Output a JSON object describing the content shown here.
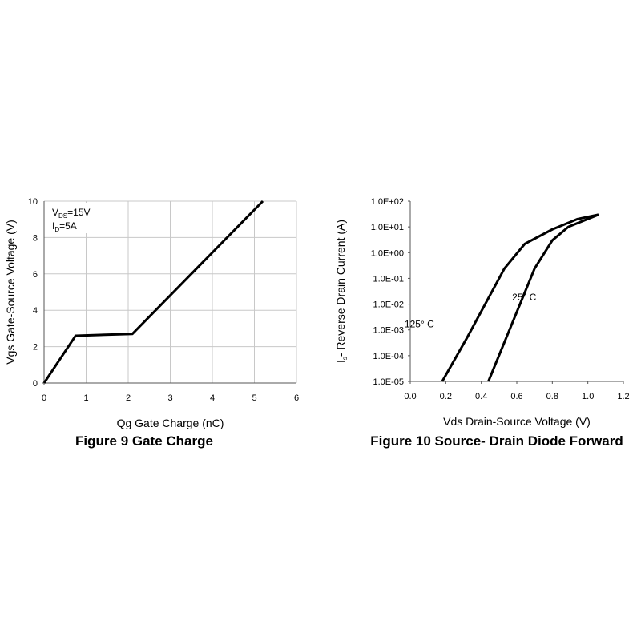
{
  "chart_data": [
    {
      "type": "line",
      "caption": "Figure 9 Gate Charge",
      "x_label": "Qg Gate Charge (nC)",
      "y_label": "Vgs Gate-Source Voltage (V)",
      "annotations": [
        [
          "V",
          "DS",
          "=15V"
        ],
        [
          "I",
          "D",
          "=5A"
        ]
      ],
      "xlim": [
        0,
        6
      ],
      "xticks": [
        0,
        1,
        2,
        3,
        4,
        5,
        6
      ],
      "ylim": [
        0,
        10
      ],
      "yticks": [
        0,
        2,
        4,
        6,
        8,
        10
      ],
      "grid": true,
      "series": [
        {
          "color": "#000000",
          "x": [
            0,
            0.75,
            2.1,
            5.2
          ],
          "values": [
            0,
            2.6,
            2.7,
            10
          ]
        }
      ]
    },
    {
      "type": "line",
      "caption": "Figure 10 Source- Drain Diode Forward",
      "x_label": "Vds Drain-Source Voltage (V)",
      "y_label": [
        "I",
        "s",
        "- Reverse Drain Current (A)"
      ],
      "xlim": [
        0,
        1.2
      ],
      "xticks": [
        {
          "value": 0,
          "label": "0.0"
        },
        0.2,
        0.4,
        0.6,
        0.8,
        {
          "value": 1,
          "label": "1.0"
        },
        1.2
      ],
      "ylim": [
        1e-05,
        100
      ],
      "log_y": true,
      "yticks": [
        {
          "value": 1e-05,
          "label": "1.0E-05"
        },
        {
          "value": 0.0001,
          "label": "1.0E-04"
        },
        {
          "value": 0.001,
          "label": "1.0E-03"
        },
        {
          "value": 0.01,
          "label": "1.0E-02"
        },
        {
          "value": 0.1,
          "label": "1.0E-01"
        },
        {
          "value": 1,
          "label": "1.0E+00"
        },
        {
          "value": 10,
          "label": "1.0E+01"
        },
        {
          "value": 100,
          "label": "1.0E+02"
        }
      ],
      "grid": false,
      "series": [
        {
          "name": "125° C",
          "color": "#000000",
          "x": [
            0.18,
            0.32,
            0.53,
            0.645,
            0.8,
            0.94,
            1.06
          ],
          "values": [
            1e-05,
            0.0005,
            0.24,
            2.2,
            8,
            20,
            30
          ]
        },
        {
          "name": "25° C",
          "color": "#000000",
          "x": [
            0.44,
            0.7,
            0.8,
            0.89,
            1.06
          ],
          "values": [
            1e-05,
            0.24,
            3,
            10,
            30
          ]
        }
      ]
    }
  ]
}
